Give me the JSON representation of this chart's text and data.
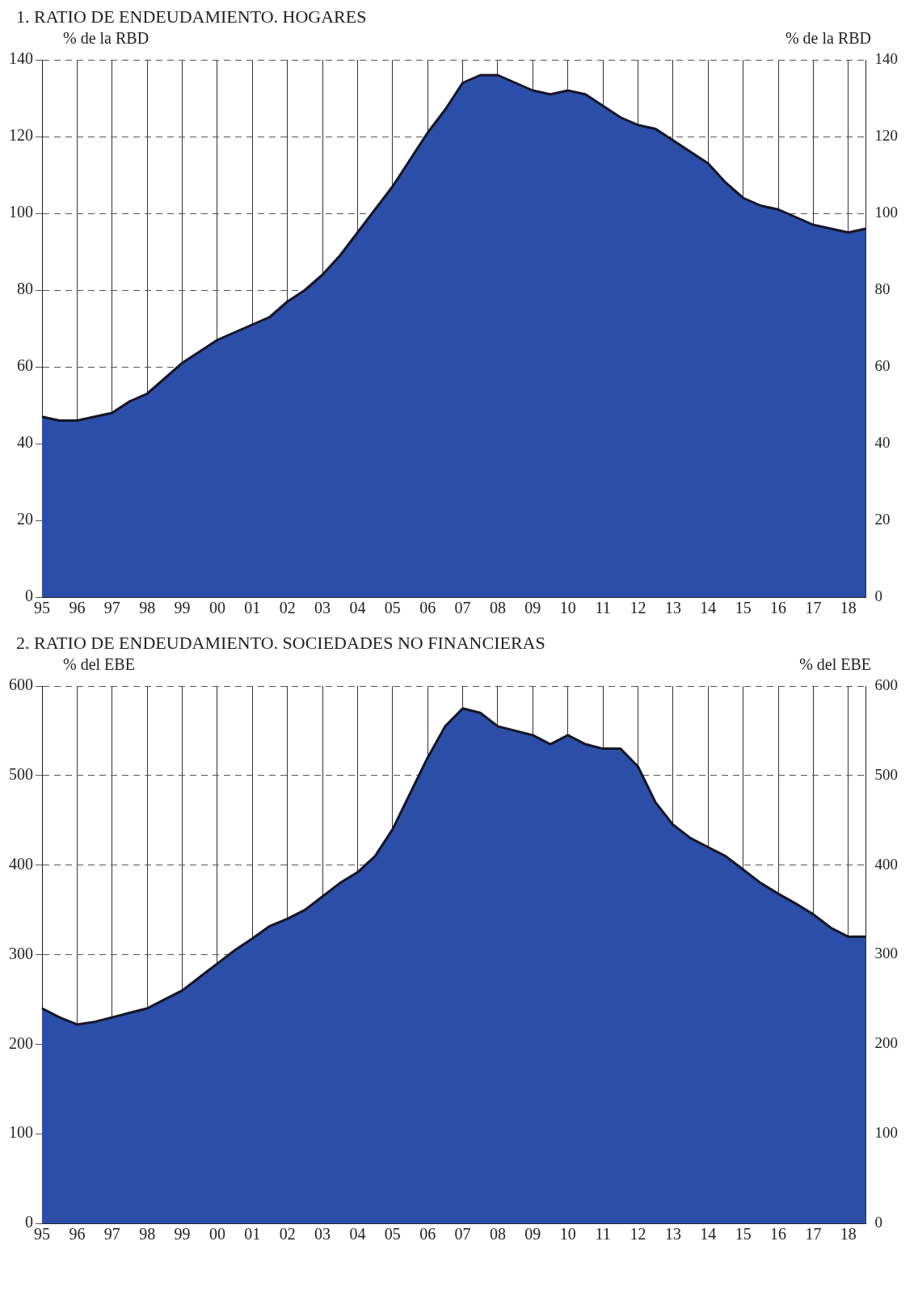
{
  "chart_data": [
    {
      "type": "area",
      "title": "1. RATIO DE ENDEUDAMIENTO. HOGARES",
      "ylabel": "% de la RBD",
      "y2label": "% de la RBD",
      "grid": true,
      "legend": false,
      "categories": [
        "95",
        null,
        "96",
        null,
        "97",
        null,
        "98",
        null,
        "99",
        null,
        "00",
        null,
        "01",
        null,
        "02",
        null,
        "03",
        null,
        "04",
        null,
        "05",
        null,
        "06",
        null,
        "07",
        null,
        "08",
        null,
        "09",
        null,
        "10",
        null,
        "11",
        null,
        "12",
        null,
        "13",
        null,
        "14",
        null,
        "15",
        null,
        "16",
        null,
        "17",
        null,
        "18",
        null
      ],
      "ylim": [
        0,
        140
      ],
      "yticks": [
        0,
        20,
        40,
        60,
        80,
        100,
        120,
        140
      ],
      "y2lim": [
        0,
        140
      ],
      "y2ticks": [
        0,
        20,
        40,
        60,
        80,
        100,
        120,
        140
      ],
      "series": [
        {
          "color": "#2b4fa8",
          "values": [
            47,
            46,
            46,
            47,
            48,
            51,
            53,
            57,
            61,
            64,
            67,
            69,
            71,
            73,
            77,
            80,
            84,
            89,
            95,
            101,
            107,
            114,
            121,
            127,
            134,
            136,
            136,
            134,
            132,
            131,
            132,
            131,
            128,
            125,
            123,
            122,
            119,
            116,
            113,
            108,
            104,
            102,
            101,
            99,
            97,
            96,
            95,
            96
          ]
        }
      ]
    },
    {
      "type": "area",
      "title": "2. RATIO DE ENDEUDAMIENTO. SOCIEDADES NO FINANCIERAS",
      "ylabel": "% del EBE",
      "y2label": "% del EBE",
      "grid": true,
      "legend": false,
      "categories": [
        "95",
        null,
        "96",
        null,
        "97",
        null,
        "98",
        null,
        "99",
        null,
        "00",
        null,
        "01",
        null,
        "02",
        null,
        "03",
        null,
        "04",
        null,
        "05",
        null,
        "06",
        null,
        "07",
        null,
        "08",
        null,
        "09",
        null,
        "10",
        null,
        "11",
        null,
        "12",
        null,
        "13",
        null,
        "14",
        null,
        "15",
        null,
        "16",
        null,
        "17",
        null,
        "18",
        null
      ],
      "ylim": [
        0,
        600
      ],
      "yticks": [
        0,
        100,
        200,
        300,
        400,
        500,
        600
      ],
      "y2lim": [
        0,
        600
      ],
      "y2ticks": [
        0,
        100,
        200,
        300,
        400,
        500,
        600
      ],
      "series": [
        {
          "color": "#2b4fa8",
          "values": [
            240,
            230,
            222,
            225,
            230,
            235,
            240,
            250,
            260,
            275,
            290,
            305,
            318,
            332,
            340,
            350,
            365,
            380,
            392,
            410,
            440,
            480,
            520,
            555,
            575,
            570,
            555,
            550,
            545,
            535,
            545,
            535,
            530,
            530,
            510,
            470,
            445,
            430,
            420,
            410,
            395,
            380,
            368,
            357,
            345,
            330,
            320,
            320
          ]
        }
      ]
    }
  ]
}
